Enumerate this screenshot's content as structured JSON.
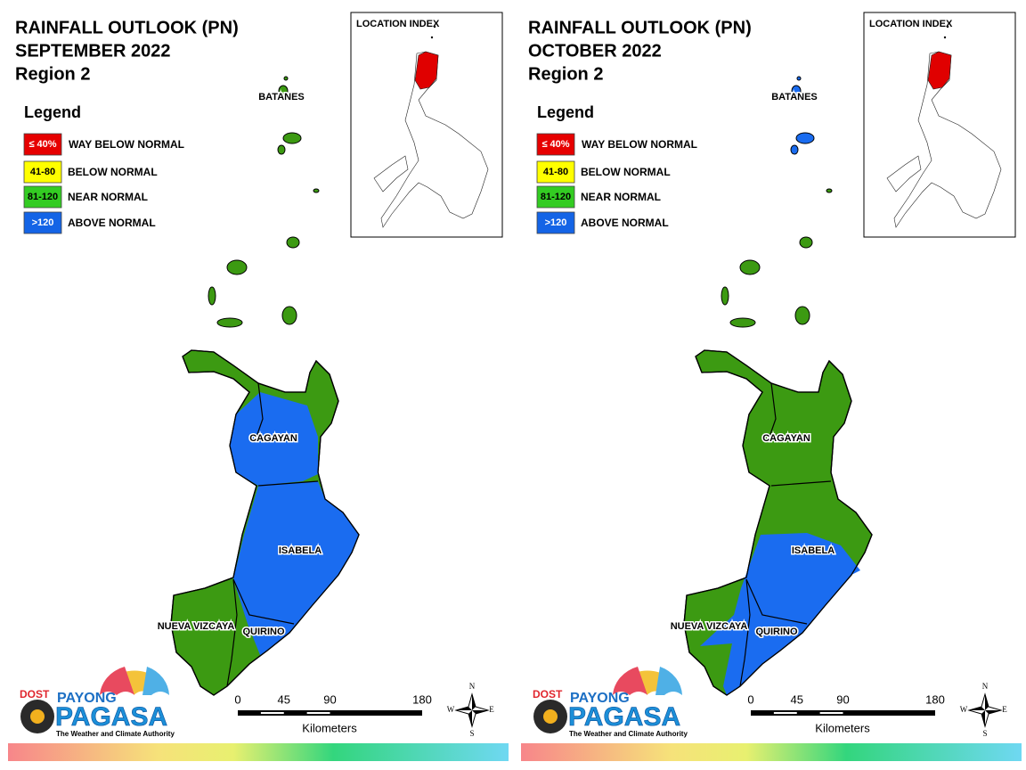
{
  "panels": [
    {
      "title": [
        "RAINFALL OUTLOOK (PN)",
        "SEPTEMBER 2022",
        "Region 2"
      ],
      "legend": {
        "title": "Legend",
        "items": [
          {
            "label": "≤ 40%",
            "description": "WAY BELOW NORMAL",
            "color": "#e60000"
          },
          {
            "label": "41-80",
            "description": "BELOW NORMAL",
            "color": "#ffff00"
          },
          {
            "label": "81-120",
            "description": "NEAR NORMAL",
            "color": "#33cc22"
          },
          {
            "label": ">120",
            "description": "ABOVE NORMAL",
            "color": "#1464e6"
          }
        ]
      },
      "location_index": {
        "title": "LOCATION INDEX"
      },
      "provinces": [
        "BATANES",
        "CAGAYAN",
        "ISABELA",
        "NUEVA VIZCAYA",
        "QUIRINO"
      ],
      "scale_bar": {
        "ticks": [
          0,
          45,
          90,
          180
        ],
        "unit": "Kilometers"
      },
      "compass": [
        "N",
        "E",
        "S",
        "W"
      ],
      "logo": {
        "agency": "DOST",
        "brand_top": "PAYONG",
        "brand": "PAGASA",
        "tagline": "The Weather and Climate Authority"
      }
    },
    {
      "title": [
        "RAINFALL OUTLOOK (PN)",
        "OCTOBER 2022",
        "Region 2"
      ],
      "legend": {
        "title": "Legend",
        "items": [
          {
            "label": "≤ 40%",
            "description": "WAY BELOW NORMAL",
            "color": "#e60000"
          },
          {
            "label": "41-80",
            "description": "BELOW NORMAL",
            "color": "#ffff00"
          },
          {
            "label": "81-120",
            "description": "NEAR NORMAL",
            "color": "#33cc22"
          },
          {
            "label": ">120",
            "description": "ABOVE NORMAL",
            "color": "#1464e6"
          }
        ]
      },
      "location_index": {
        "title": "LOCATION INDEX"
      },
      "provinces": [
        "BATANES",
        "CAGAYAN",
        "ISABELA",
        "NUEVA VIZCAYA",
        "QUIRINO"
      ],
      "scale_bar": {
        "ticks": [
          0,
          45,
          90,
          180
        ],
        "unit": "Kilometers"
      },
      "compass": [
        "N",
        "E",
        "S",
        "W"
      ],
      "logo": {
        "agency": "DOST",
        "brand_top": "PAYONG",
        "brand": "PAGASA",
        "tagline": "The Weather and Climate Authority"
      }
    }
  ]
}
